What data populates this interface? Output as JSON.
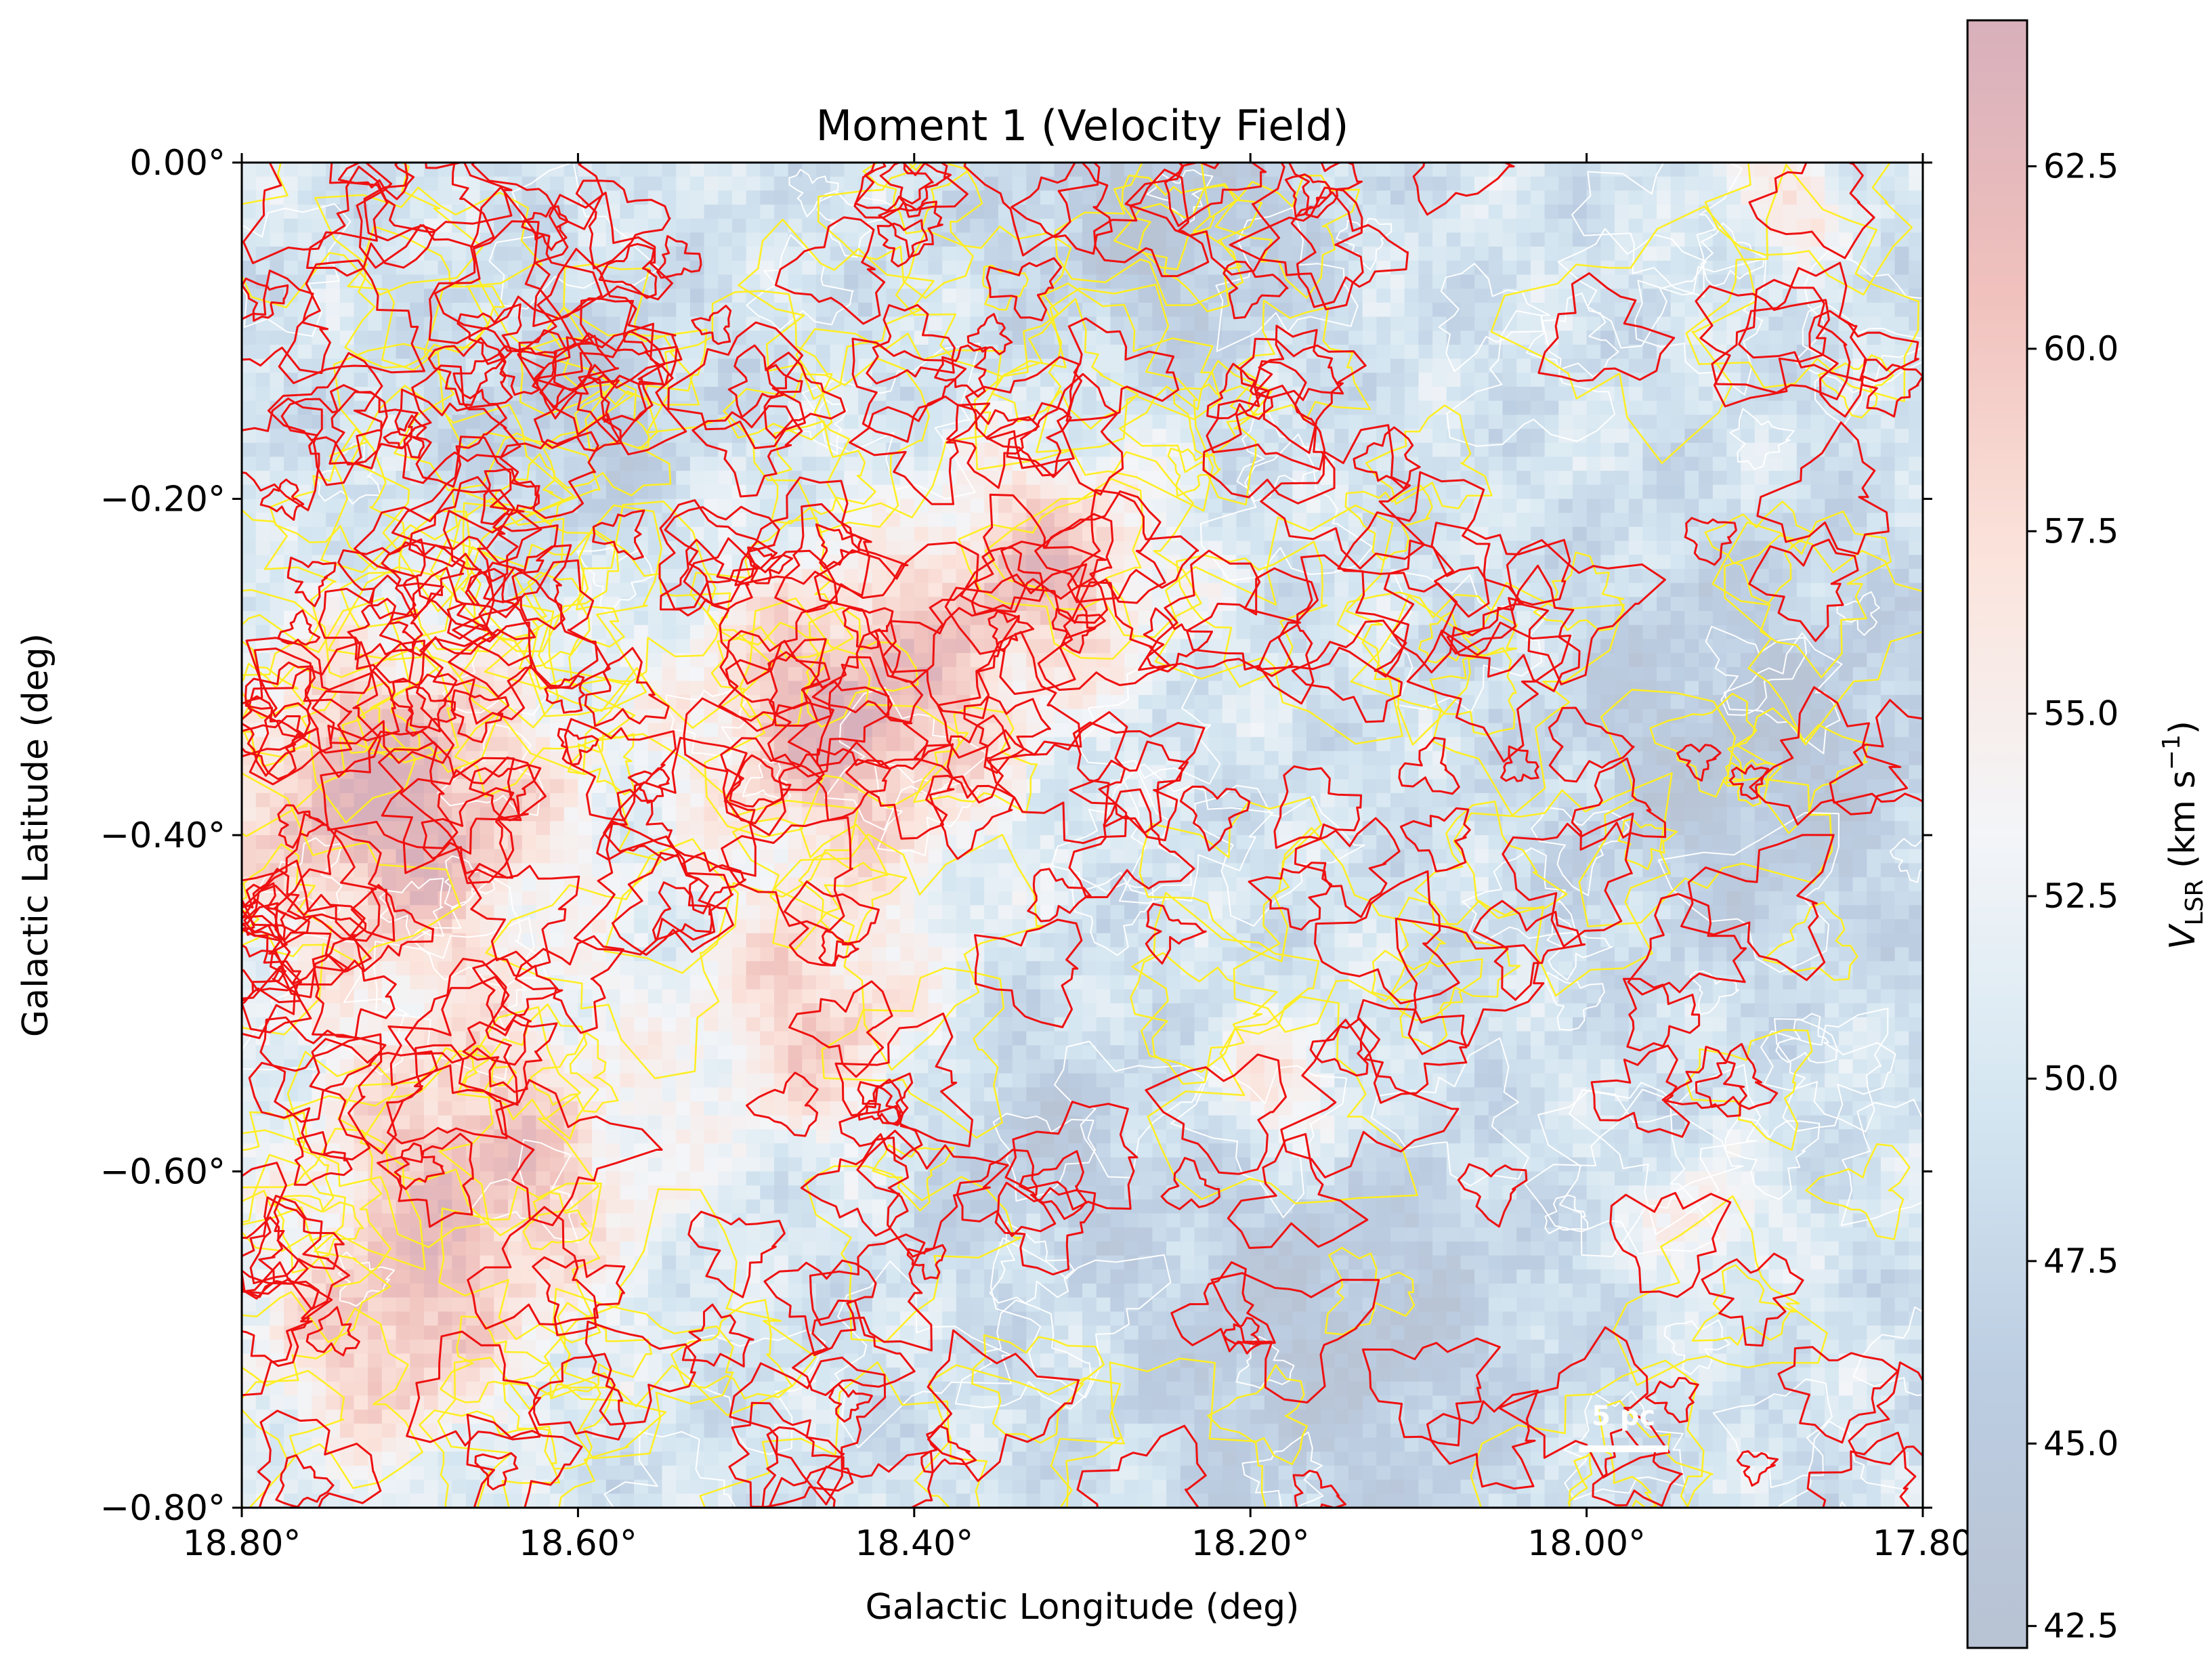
{
  "chart_data": {
    "type": "heatmap",
    "title": "Moment 1 (Velocity Field)",
    "xlabel": "Galactic Longitude (deg)",
    "ylabel": "Galactic Latitude (deg)",
    "x_ticks": [
      {
        "value": 18.8,
        "label": "18.80°"
      },
      {
        "value": 18.6,
        "label": "18.60°"
      },
      {
        "value": 18.4,
        "label": "18.40°"
      },
      {
        "value": 18.2,
        "label": "18.20°"
      },
      {
        "value": 18.0,
        "label": "18.00°"
      },
      {
        "value": 17.8,
        "label": "17.80"
      }
    ],
    "y_ticks": [
      {
        "value": 0.0,
        "label": "0.00°"
      },
      {
        "value": -0.2,
        "label": "−0.20°"
      },
      {
        "value": -0.4,
        "label": "−0.40°"
      },
      {
        "value": -0.6,
        "label": "−0.60°"
      },
      {
        "value": -0.8,
        "label": "−0.80°"
      }
    ],
    "xlim": [
      18.8,
      17.8
    ],
    "ylim": [
      -0.8,
      0.0
    ],
    "colorbar": {
      "label_main": "V",
      "label_sub": "LSR",
      "label_unit_pre": " (km s",
      "label_unit_sup": "−1",
      "label_unit_post": ")",
      "range": [
        42.2,
        64.5
      ],
      "ticks": [
        {
          "value": 42.5,
          "label": "42.5"
        },
        {
          "value": 45.0,
          "label": "45.0"
        },
        {
          "value": 47.5,
          "label": "47.5"
        },
        {
          "value": 50.0,
          "label": "50.0"
        },
        {
          "value": 52.5,
          "label": "52.5"
        },
        {
          "value": 55.0,
          "label": "55.0"
        },
        {
          "value": 57.5,
          "label": "57.5"
        },
        {
          "value": 60.0,
          "label": "60.0"
        },
        {
          "value": 62.5,
          "label": "62.5"
        }
      ],
      "colormap": [
        "#b8c3d3",
        "#bccde2",
        "#d4e6f1",
        "#f3f5f8",
        "#fbe4dc",
        "#f0c1bd",
        "#d8b0bb"
      ]
    },
    "high_velocity_regions": [
      {
        "l": 18.71,
        "b": -0.38,
        "sigma": 0.07,
        "v": 64
      },
      {
        "l": 18.66,
        "b": -0.6,
        "sigma": 0.07,
        "v": 61
      },
      {
        "l": 18.44,
        "b": -0.33,
        "sigma": 0.065,
        "v": 63
      },
      {
        "l": 18.32,
        "b": -0.24,
        "sigma": 0.05,
        "v": 60
      },
      {
        "l": 18.46,
        "b": -0.51,
        "sigma": 0.05,
        "v": 59
      },
      {
        "l": 18.72,
        "b": -0.71,
        "sigma": 0.05,
        "v": 58
      },
      {
        "l": 18.18,
        "b": -0.55,
        "sigma": 0.03,
        "v": 57
      },
      {
        "l": 17.93,
        "b": -0.63,
        "sigma": 0.025,
        "v": 56
      },
      {
        "l": 17.88,
        "b": -0.02,
        "sigma": 0.025,
        "v": 57
      }
    ],
    "low_velocity_regions": [
      {
        "l": 18.25,
        "b": -0.03,
        "sigma": 0.06,
        "v": 43
      },
      {
        "l": 17.9,
        "b": -0.35,
        "sigma": 0.08,
        "v": 43
      },
      {
        "l": 18.15,
        "b": -0.7,
        "sigma": 0.08,
        "v": 43
      },
      {
        "l": 18.6,
        "b": -0.15,
        "sigma": 0.05,
        "v": 45
      },
      {
        "l": 18.33,
        "b": -0.58,
        "sigma": 0.05,
        "v": 45
      }
    ],
    "contour_colors": {
      "red": "#ee1111",
      "yellow": "#ffee22",
      "white": "#ffffff"
    },
    "scale_bar": {
      "label": "5 pc",
      "length_deg": 0.053,
      "center_l": 17.978,
      "b": -0.765
    }
  }
}
